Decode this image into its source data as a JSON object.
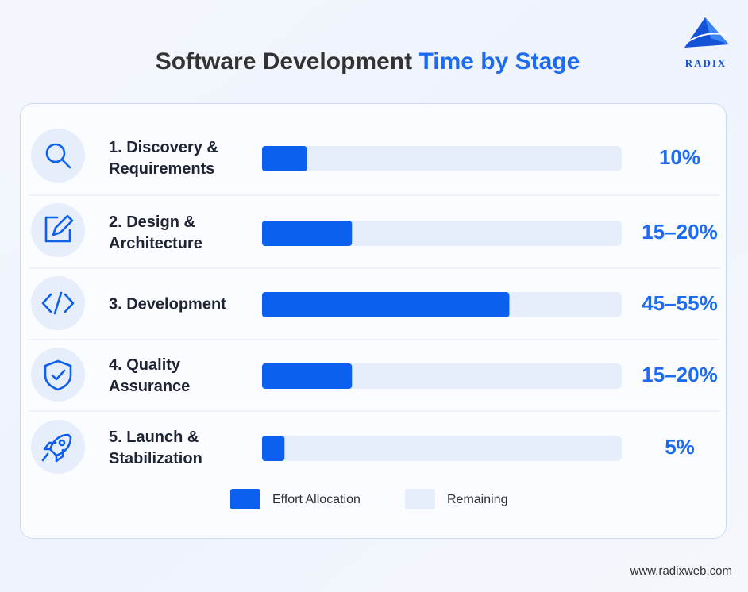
{
  "chart_data": {
    "type": "bar",
    "title": [
      "Software Development",
      "Time by Stage"
    ],
    "categories": [
      [
        "1. Discovery &",
        "Requirements"
      ],
      [
        "2. Design &",
        "Architecture"
      ],
      [
        "3. Development"
      ],
      [
        "4. Quality",
        "Assurance"
      ],
      [
        "5. Launch &",
        "Stabilization"
      ]
    ],
    "values": [
      10,
      15,
      45,
      15,
      5
    ],
    "values_high": [
      null,
      20,
      55,
      20,
      null
    ],
    "value_labels": [
      "10%",
      "15–20%",
      "45–55%",
      "15–20%",
      "5%"
    ],
    "xlim": [
      0,
      80
    ],
    "series": [
      {
        "name": "Effort Allocation",
        "color": "#0d5fef"
      },
      {
        "name": "Remaining",
        "color": "#e6eefc"
      }
    ],
    "logo": "RADIX",
    "footer": "www.radixweb.com"
  }
}
